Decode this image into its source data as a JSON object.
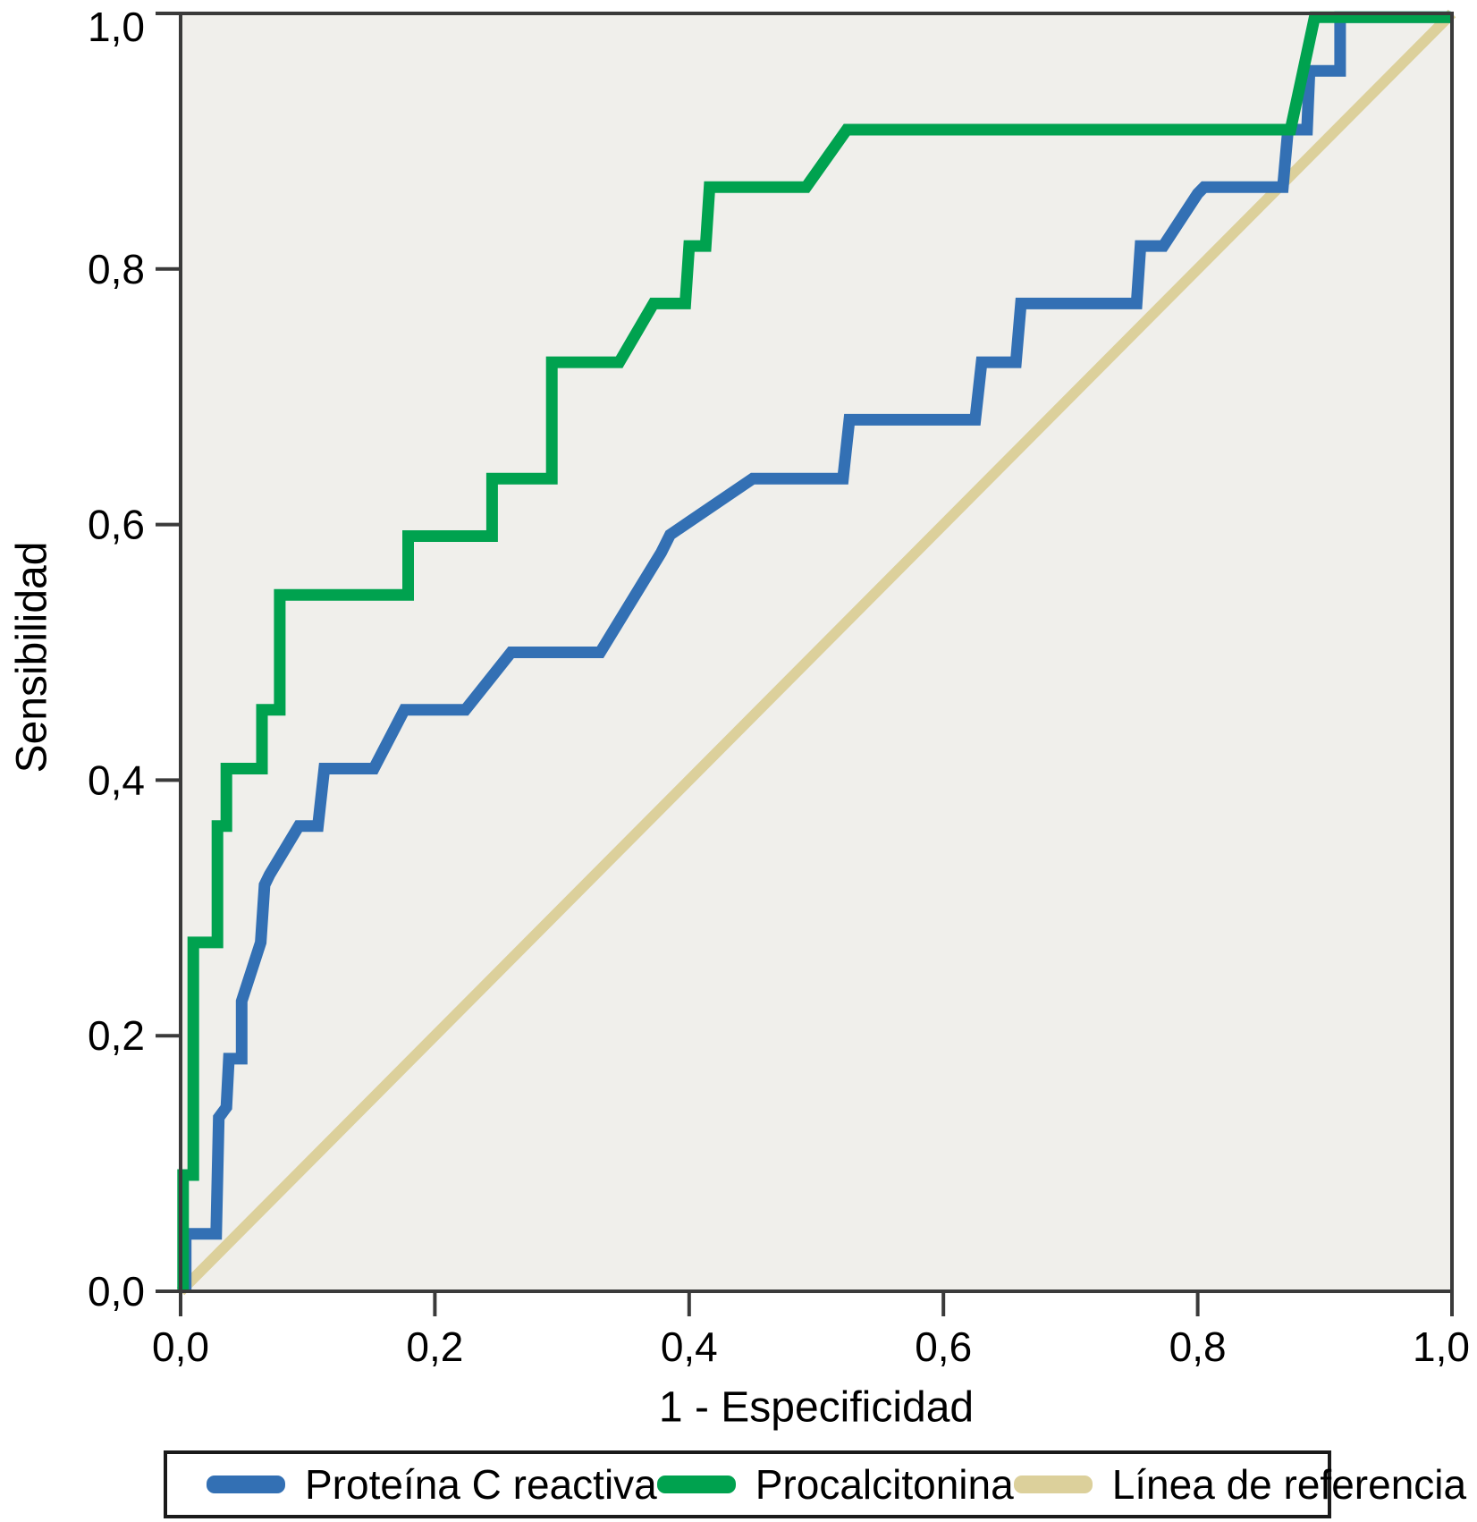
{
  "figure": {
    "background": "#ffffff",
    "panel_bg": "#f0efeb",
    "frame_color": "#3a3a3a",
    "text_color": "#000000"
  },
  "axes": {
    "x_label": "1 - Especificidad",
    "y_label": "Sensibilidad",
    "tick_values": [
      0,
      0.2,
      0.4,
      0.6,
      0.8,
      1.0
    ],
    "x_tick_labels": [
      "0,0",
      "0,2",
      "0,4",
      "0,6",
      "0,8",
      "1,0"
    ],
    "y_tick_labels": [
      "0,0",
      "0,2",
      "0,4",
      "0,6",
      "0,8",
      "1,0"
    ]
  },
  "legend": {
    "items": [
      {
        "label": "Proteína C reactiva",
        "color": "#3370b4"
      },
      {
        "label": "Procalcitonina",
        "color": "#00a24f"
      },
      {
        "label": "Línea de referencia",
        "color": "#dcd09b"
      }
    ]
  },
  "chart_data": {
    "type": "line",
    "subtype": "roc-curve",
    "title": "",
    "xlabel": "1 - Especificidad",
    "ylabel": "Sensibilidad",
    "xlim": [
      0,
      1
    ],
    "ylim": [
      0,
      1
    ],
    "grid": false,
    "legend_position": "bottom",
    "x_ticks": [
      "0,0",
      "0,2",
      "0,4",
      "0,6",
      "0,8",
      "1,0"
    ],
    "y_ticks": [
      "0,0",
      "0,2",
      "0,4",
      "0,6",
      "0,8",
      "1,0"
    ],
    "series": [
      {
        "name": "Proteína C reactiva",
        "color": "#3370b4",
        "stroke_width": 13,
        "draw_order": 1,
        "points": [
          [
            0.004,
            0.0
          ],
          [
            0.004,
            0.045
          ],
          [
            0.028,
            0.045
          ],
          [
            0.03,
            0.136
          ],
          [
            0.036,
            0.144
          ],
          [
            0.038,
            0.182
          ],
          [
            0.048,
            0.182
          ],
          [
            0.048,
            0.227
          ],
          [
            0.063,
            0.273
          ],
          [
            0.066,
            0.318
          ],
          [
            0.07,
            0.326
          ],
          [
            0.093,
            0.364
          ],
          [
            0.108,
            0.364
          ],
          [
            0.113,
            0.409
          ],
          [
            0.152,
            0.409
          ],
          [
            0.176,
            0.455
          ],
          [
            0.224,
            0.455
          ],
          [
            0.26,
            0.5
          ],
          [
            0.33,
            0.5
          ],
          [
            0.378,
            0.578
          ],
          [
            0.385,
            0.592
          ],
          [
            0.45,
            0.636
          ],
          [
            0.521,
            0.636
          ],
          [
            0.526,
            0.682
          ],
          [
            0.625,
            0.682
          ],
          [
            0.63,
            0.727
          ],
          [
            0.657,
            0.727
          ],
          [
            0.661,
            0.773
          ],
          [
            0.752,
            0.773
          ],
          [
            0.755,
            0.818
          ],
          [
            0.773,
            0.818
          ],
          [
            0.8,
            0.859
          ],
          [
            0.805,
            0.864
          ],
          [
            0.867,
            0.864
          ],
          [
            0.871,
            0.909
          ],
          [
            0.886,
            0.909
          ],
          [
            0.888,
            0.955
          ],
          [
            0.912,
            0.955
          ],
          [
            0.912,
            0.997
          ],
          [
            0.999,
            0.997
          ]
        ]
      },
      {
        "name": "Procalcitonina",
        "color": "#00a24f",
        "stroke_width": 13,
        "draw_order": 2,
        "points": [
          [
            0.002,
            0.0
          ],
          [
            0.002,
            0.091
          ],
          [
            0.01,
            0.091
          ],
          [
            0.01,
            0.273
          ],
          [
            0.029,
            0.273
          ],
          [
            0.029,
            0.364
          ],
          [
            0.036,
            0.364
          ],
          [
            0.036,
            0.409
          ],
          [
            0.064,
            0.409
          ],
          [
            0.064,
            0.455
          ],
          [
            0.078,
            0.455
          ],
          [
            0.078,
            0.545
          ],
          [
            0.179,
            0.545
          ],
          [
            0.179,
            0.591
          ],
          [
            0.245,
            0.591
          ],
          [
            0.245,
            0.636
          ],
          [
            0.292,
            0.636
          ],
          [
            0.292,
            0.727
          ],
          [
            0.345,
            0.727
          ],
          [
            0.372,
            0.773
          ],
          [
            0.397,
            0.773
          ],
          [
            0.4,
            0.818
          ],
          [
            0.413,
            0.818
          ],
          [
            0.416,
            0.864
          ],
          [
            0.492,
            0.864
          ],
          [
            0.524,
            0.909
          ],
          [
            0.873,
            0.909
          ],
          [
            0.892,
            0.997
          ],
          [
            0.999,
            0.997
          ]
        ]
      },
      {
        "name": "Línea de referencia",
        "color": "#dcd09b",
        "stroke_width": 12,
        "draw_order": 0,
        "points": [
          [
            0.0,
            0.0
          ],
          [
            1.0,
            1.0
          ]
        ]
      }
    ]
  }
}
